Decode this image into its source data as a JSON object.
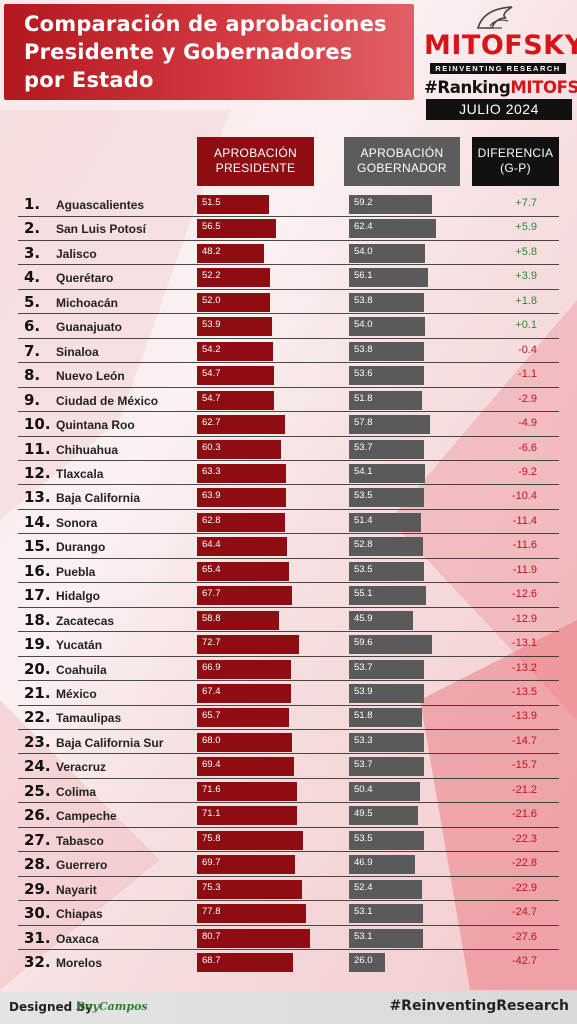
{
  "title": {
    "line1": "Comparación de aprobaciones",
    "line2": "Presidente y Gobernadores",
    "line3": "por Estado"
  },
  "brand": {
    "name": "MITOFSKY",
    "tagline": "REINVENTING RESEARCH",
    "hashtag_prefix": "#Ranking",
    "hashtag_highlight": "MITOFSKY",
    "date": "JULIO 2024"
  },
  "headers": {
    "president": [
      "APROBACIÓN",
      "PRESIDENTE"
    ],
    "governor": [
      "APROBACIÓN",
      "GOBERNADOR"
    ],
    "difference": [
      "DIFERENCIA",
      "(G-P)"
    ]
  },
  "colors": {
    "president_bar": "#8e0d13",
    "governor_bar": "#5a5a5a",
    "positive": "#2e8b2e",
    "negative": "#c0141b"
  },
  "chart_data": {
    "type": "bar",
    "title": "Comparación de aprobaciones Presidente y Gobernadores por Estado",
    "categories": [
      "Aguascalientes",
      "San Luis Potosí",
      "Jalisco",
      "Querétaro",
      "Michoacán",
      "Guanajuato",
      "Sinaloa",
      "Nuevo León",
      "Ciudad de México",
      "Quintana Roo",
      "Chihuahua",
      "Tlaxcala",
      "Baja California",
      "Sonora",
      "Durango",
      "Puebla",
      "Hidalgo",
      "Zacatecas",
      "Yucatán",
      "Coahuila",
      "México",
      "Tamaulipas",
      "Baja California Sur",
      "Veracruz",
      "Colima",
      "Campeche",
      "Tabasco",
      "Guerrero",
      "Nayarit",
      "Chiapas",
      "Oaxaca",
      "Morelos"
    ],
    "ranks": [
      "1.",
      "2.",
      "3.",
      "4.",
      "5.",
      "6.",
      "7.",
      "8.",
      "9.",
      "10.",
      "11.",
      "12.",
      "13.",
      "14.",
      "15.",
      "16.",
      "17.",
      "18.",
      "19.",
      "20.",
      "21.",
      "22.",
      "23.",
      "24.",
      "25.",
      "26.",
      "27.",
      "28.",
      "29.",
      "30.",
      "31.",
      "32."
    ],
    "series": [
      {
        "name": "APROBACIÓN PRESIDENTE",
        "values": [
          51.5,
          56.5,
          48.2,
          52.2,
          52.0,
          53.9,
          54.2,
          54.7,
          54.7,
          62.7,
          60.3,
          63.3,
          63.9,
          62.8,
          64.4,
          65.4,
          67.7,
          58.8,
          72.7,
          66.9,
          67.4,
          65.7,
          68.0,
          69.4,
          71.6,
          71.1,
          75.8,
          69.7,
          75.3,
          77.8,
          80.7,
          68.7
        ]
      },
      {
        "name": "APROBACIÓN GOBERNADOR",
        "values": [
          59.2,
          62.4,
          54.0,
          56.1,
          53.8,
          54.0,
          53.8,
          53.6,
          51.8,
          57.8,
          53.7,
          54.1,
          53.5,
          51.4,
          52.8,
          53.5,
          55.1,
          45.9,
          59.6,
          53.7,
          53.9,
          51.8,
          53.3,
          53.7,
          50.4,
          49.5,
          53.5,
          46.9,
          52.4,
          53.1,
          53.1,
          26.0
        ]
      },
      {
        "name": "DIFERENCIA (G-P)",
        "values": [
          7.7,
          5.9,
          5.8,
          3.9,
          1.8,
          0.1,
          -0.4,
          -1.1,
          -2.9,
          -4.9,
          -6.6,
          -9.2,
          -10.4,
          -11.4,
          -11.6,
          -11.9,
          -12.6,
          -12.9,
          -13.1,
          -13.2,
          -13.5,
          -13.9,
          -14.7,
          -15.7,
          -21.2,
          -21.6,
          -22.3,
          -22.8,
          -22.9,
          -24.7,
          -27.6,
          -42.7
        ]
      }
    ],
    "president_labels": [
      "51.5",
      "56.5",
      "48.2",
      "52.2",
      "52.0",
      "53.9",
      "54.2",
      "54.7",
      "54.7",
      "62.7",
      "60.3",
      "63.3",
      "63.9",
      "62.8",
      "64.4",
      "65.4",
      "67.7",
      "58.8",
      "72.7",
      "66.9",
      "67.4",
      "65.7",
      "68.0",
      "69.4",
      "71.6",
      "71.1",
      "75.8",
      "69.7",
      "75.3",
      "77.8",
      "80.7",
      "68.7"
    ],
    "governor_labels": [
      "59.2",
      "62.4",
      "54.0",
      "56.1",
      "53.8",
      "54.0",
      "53.8",
      "53.6",
      "51.8",
      "57.8",
      "53.7",
      "54.1",
      "53.5",
      "51.4",
      "52.8",
      "53.5",
      "55.1",
      "45.9",
      "59.6",
      "53.7",
      "53.9",
      "51.8",
      "53.3",
      "53.7",
      "50.4",
      "49.5",
      "53.5",
      "46.9",
      "52.4",
      "53.1",
      "53.1",
      "26.0"
    ],
    "difference_labels": [
      "+7.7",
      "+5.9",
      "+5.8",
      "+3.9",
      "+1.8",
      "+0.1",
      "-0.4",
      "-1.1",
      "-2.9",
      "-4.9",
      "-6.6",
      "-9.2",
      "-10.4",
      "-11.4",
      "-11.6",
      "-11.9",
      "-12.6",
      "-12.9",
      "-13.1",
      "-13.2",
      "-13.5",
      "-13.9",
      "-14.7",
      "-15.7",
      "-21.2",
      "-21.6",
      "-22.3",
      "-22.8",
      "-22.9",
      "-24.7",
      "-27.6",
      "-42.7"
    ]
  },
  "footer": {
    "designed_by": "Designed by",
    "author": "RoyCampos",
    "hashtag": "#ReinventingResearch"
  }
}
